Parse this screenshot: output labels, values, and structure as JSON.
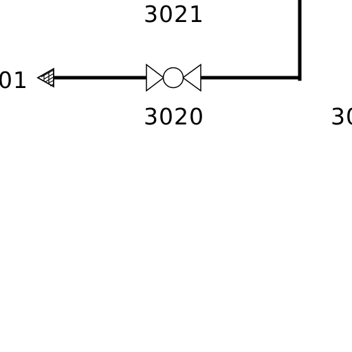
{
  "diagram": {
    "labels": {
      "top_tag": "3021",
      "valve_tag": "3020",
      "left_tag_fragment": "01",
      "right_tag_fragment": "30"
    },
    "colors": {
      "line": "#000000",
      "background": "#ffffff"
    },
    "symbols": [
      "pipe-line",
      "ball-valve",
      "off-page-arrow"
    ]
  }
}
